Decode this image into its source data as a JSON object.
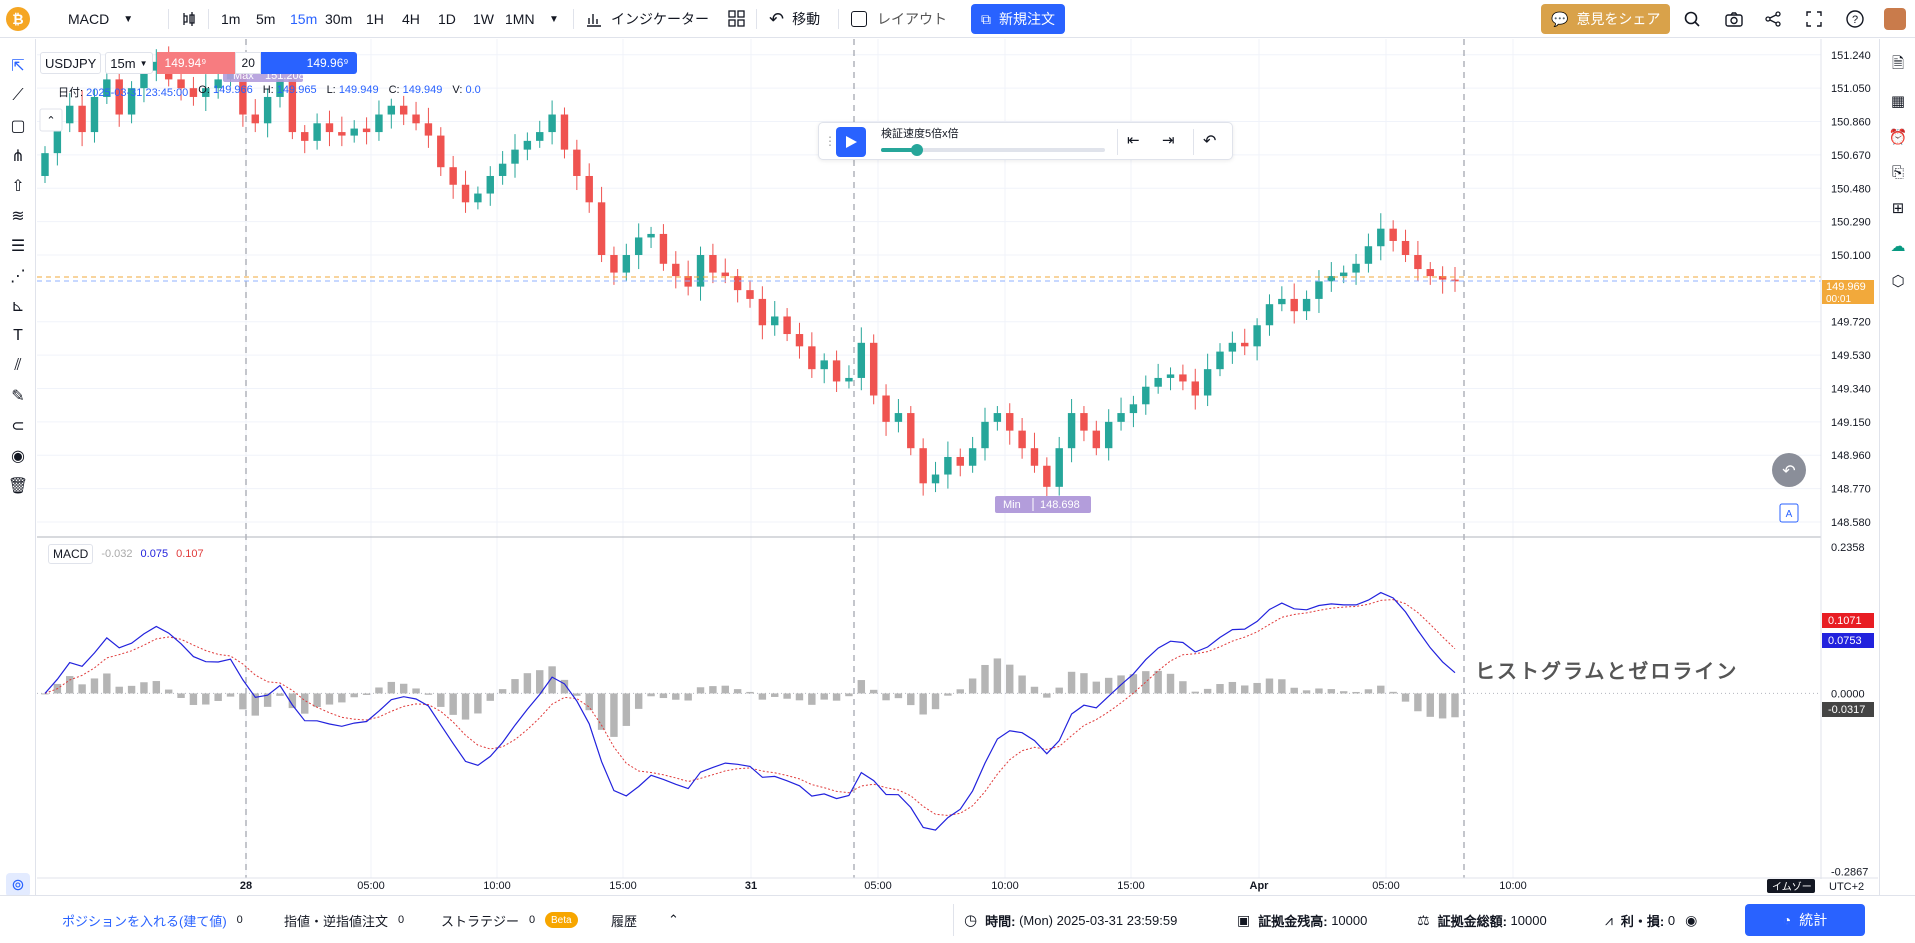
{
  "toolbar": {
    "indicator_name": "MACD",
    "timeframes": [
      "1m",
      "5m",
      "15m",
      "30m",
      "1H",
      "4H",
      "1D",
      "1W",
      "1MN"
    ],
    "active_timeframe": "15m",
    "indicators_label": "インジケーター",
    "move_label": "移動",
    "layout_label": "レイアウト",
    "new_order_label": "新規注文",
    "share_label": "意見をシェア"
  },
  "legend": {
    "symbol": "USDJPY",
    "interval": "15m",
    "sell_price": "149.94⁹",
    "quantity": "20",
    "buy_price": "149.96⁹",
    "date_label": "日付:",
    "date_value": "2025-03-31 23:45:00",
    "open_label": "O:",
    "open": "149.966",
    "high_label": "H:",
    "high": "149.965",
    "low_label": "L:",
    "low": "149.949",
    "close_label": "C:",
    "close": "149.949",
    "volume_label": "V:",
    "volume": "0.0"
  },
  "markers": {
    "max_label": "Max",
    "max_value": "151.208",
    "min_label": "Min",
    "min_value": "148.698"
  },
  "playbar": {
    "speed_label": "検証速度5倍x倍",
    "progress": 0.16
  },
  "price_axis": {
    "ticks": [
      "151.240",
      "151.050",
      "150.860",
      "150.670",
      "150.480",
      "150.290",
      "150.100",
      "149.720",
      "149.530",
      "149.340",
      "149.150",
      "148.960",
      "148.770",
      "148.580"
    ],
    "current_price": "149.969",
    "countdown": "00:01"
  },
  "macd": {
    "name": "MACD",
    "hist_value": "-0.032",
    "macd_value": "0.075",
    "signal_value": "0.107",
    "axis_ticks": [
      "0.2358",
      "0.0000",
      "-0.2867"
    ],
    "macd_tag": "0.0753",
    "signal_tag": "0.1071",
    "hist_tag": "-0.0317",
    "annotation": "ヒストグラムとゼロライン",
    "colors": {
      "macd": "#2222dd",
      "signal": "#e03b3b",
      "hist": "#b5b5b5"
    }
  },
  "time_axis": {
    "ticks": [
      "28",
      "05:00",
      "10:00",
      "15:00",
      "31",
      "05:00",
      "10:00",
      "15:00",
      "Apr",
      "05:00",
      "10:00"
    ],
    "timezone_label": "イムゾー",
    "timezone": "UTC+2"
  },
  "bottombar": {
    "positions_label": "ポジションを入れる(建て値)",
    "positions_count": "0",
    "orders_label": "指値・逆指値注文",
    "orders_count": "0",
    "strategy_label": "ストラテジー",
    "strategy_count": "0",
    "beta_label": "Beta",
    "history_label": "履歴",
    "time_label": "時間:",
    "time_value": "(Mon) 2025-03-31 23:59:59",
    "balance_label": "証拠金残高:",
    "balance_value": "10000",
    "equity_label": "証拠金総額:",
    "equity_value": "10000",
    "pnl_label": "利・損:",
    "pnl_value": "0",
    "stats_label": "統計"
  },
  "chart_data": {
    "type": "candlestick",
    "symbol": "USDJPY",
    "interval": "15m",
    "ylim": [
      148.5,
      151.33
    ],
    "close": [
      150.68,
      150.85,
      150.95,
      150.8,
      151.0,
      151.1,
      150.9,
      151.05,
      151.15,
      151.2,
      151.1,
      151.05,
      151.0,
      151.05,
      151.1,
      151.15,
      150.9,
      150.85,
      151.0,
      151.1,
      150.8,
      150.75,
      150.85,
      150.8,
      150.78,
      150.82,
      150.8,
      150.9,
      150.95,
      150.9,
      150.85,
      150.78,
      150.6,
      150.5,
      150.4,
      150.45,
      150.55,
      150.62,
      150.7,
      150.75,
      150.8,
      150.9,
      150.7,
      150.55,
      150.4,
      150.1,
      150.0,
      150.1,
      150.2,
      150.22,
      150.05,
      149.98,
      149.92,
      150.1,
      150.0,
      149.98,
      149.9,
      149.85,
      149.7,
      149.75,
      149.65,
      149.58,
      149.45,
      149.5,
      149.38,
      149.4,
      149.6,
      149.3,
      149.15,
      149.2,
      149.0,
      148.8,
      148.85,
      148.95,
      148.9,
      149.0,
      149.15,
      149.2,
      149.1,
      149.0,
      148.9,
      148.78,
      149.0,
      149.2,
      149.1,
      149.0,
      149.15,
      149.2,
      149.25,
      149.35,
      149.4,
      149.42,
      149.38,
      149.3,
      149.45,
      149.55,
      149.6,
      149.58,
      149.7,
      149.82,
      149.85,
      149.78,
      149.85,
      149.95,
      149.98,
      150.0,
      150.05,
      150.15,
      150.25,
      150.18,
      150.1,
      150.02,
      149.98,
      149.96,
      149.95
    ]
  }
}
